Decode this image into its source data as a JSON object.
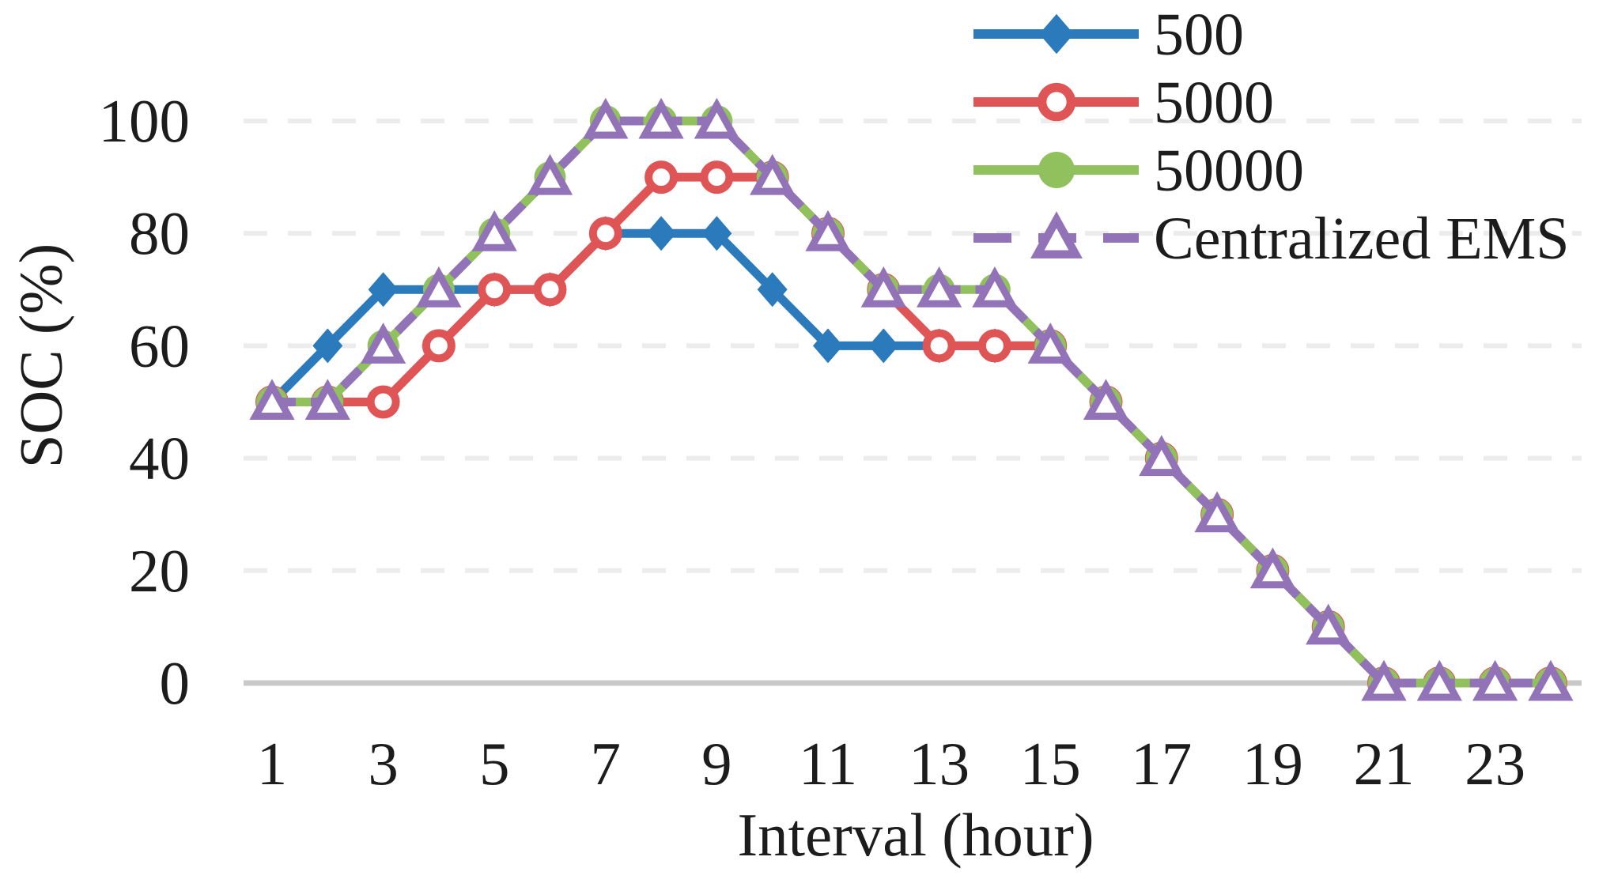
{
  "figure": {
    "background": "#ffffff"
  },
  "chart_data": {
    "type": "line",
    "title": "",
    "xlabel": "Interval (hour)",
    "ylabel": "SOC (%)",
    "x": [
      1,
      2,
      3,
      4,
      5,
      6,
      7,
      8,
      9,
      10,
      11,
      12,
      13,
      14,
      15,
      16,
      17,
      18,
      19,
      20,
      21,
      22,
      23,
      24
    ],
    "x_ticks": [
      1,
      3,
      5,
      7,
      9,
      11,
      13,
      15,
      17,
      19,
      21,
      23
    ],
    "y_ticks": [
      0,
      20,
      40,
      60,
      80,
      100
    ],
    "xlim": [
      1,
      24
    ],
    "ylim": [
      0,
      100
    ],
    "grid": "horizontal-dashed",
    "legend_position": "top-right",
    "style": {
      "grid_color": "#ececec",
      "axis_line_color": "#c9c9c9",
      "text_color": "#1c1c1c",
      "marker_fill": "#ffffff"
    },
    "series": [
      {
        "name": "500",
        "color": "#2b7abc",
        "marker": "filled-diamond",
        "line_style": "solid",
        "values": [
          50,
          60,
          70,
          70,
          70,
          70,
          80,
          80,
          80,
          70,
          60,
          60,
          60,
          60,
          60,
          50,
          40,
          30,
          20,
          10,
          0,
          0,
          0,
          0
        ]
      },
      {
        "name": "5000",
        "color": "#df5454",
        "marker": "open-circle",
        "line_style": "solid",
        "values": [
          50,
          50,
          50,
          60,
          70,
          70,
          80,
          90,
          90,
          90,
          80,
          70,
          60,
          60,
          60,
          50,
          40,
          30,
          20,
          10,
          0,
          0,
          0,
          0
        ]
      },
      {
        "name": "50000",
        "color": "#90c15c",
        "marker": "filled-circle",
        "line_style": "solid",
        "values": [
          50,
          50,
          60,
          70,
          80,
          90,
          100,
          100,
          100,
          90,
          80,
          70,
          70,
          70,
          60,
          50,
          40,
          30,
          20,
          10,
          0,
          0,
          0,
          0
        ]
      },
      {
        "name": "Centralized EMS",
        "color": "#9273b8",
        "marker": "open-triangle",
        "line_style": "dashed",
        "values": [
          50,
          50,
          60,
          70,
          80,
          90,
          100,
          100,
          100,
          90,
          80,
          70,
          70,
          70,
          60,
          50,
          40,
          30,
          20,
          10,
          0,
          0,
          0,
          0
        ]
      }
    ]
  }
}
